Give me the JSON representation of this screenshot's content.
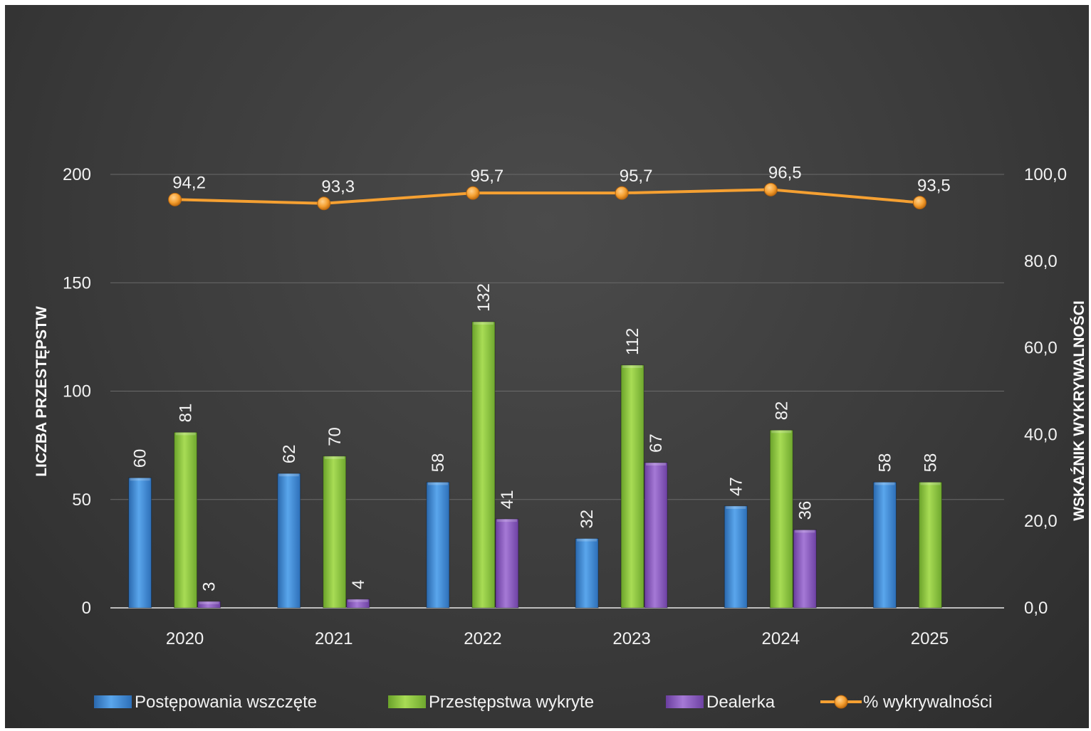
{
  "chart_data": {
    "type": "bar",
    "title": "",
    "categories": [
      "2020",
      "2021",
      "2022",
      "2023",
      "2024",
      "2025"
    ],
    "series": [
      {
        "name": "Postępowania wszczęte",
        "kind": "bar",
        "axis": "left",
        "color": "#3f8fd8",
        "values": [
          60,
          62,
          58,
          32,
          47,
          58
        ]
      },
      {
        "name": "Przestępstwa wykryte",
        "kind": "bar",
        "axis": "left",
        "color": "#8cc63f",
        "values": [
          81,
          70,
          132,
          112,
          82,
          58
        ]
      },
      {
        "name": "Dealerka",
        "kind": "bar",
        "axis": "left",
        "color": "#8a5bc0",
        "values": [
          3,
          4,
          41,
          67,
          36,
          null
        ]
      },
      {
        "name": "% wykrywalności",
        "kind": "line",
        "axis": "right",
        "color": "#f5a032",
        "values": [
          94.2,
          93.3,
          95.7,
          95.7,
          96.5,
          93.5
        ]
      }
    ],
    "data_labels": {
      "bars": [
        [
          "60",
          "81",
          "3"
        ],
        [
          "62",
          "70",
          "4"
        ],
        [
          "58",
          "132",
          "41"
        ],
        [
          "32",
          "112",
          "67"
        ],
        [
          "47",
          "82",
          "36"
        ],
        [
          "58",
          "58",
          ""
        ]
      ],
      "line": [
        "94,2",
        "93,3",
        "95,7",
        "95,7",
        "96,5",
        "93,5"
      ]
    },
    "ylabel": "LICZBA PRZESTĘPSTW",
    "ylabel_right": "WSKAŹNIK WYKRYWALNOŚCI",
    "ylim": [
      0,
      200
    ],
    "ylim_right": [
      0,
      100
    ],
    "yticks": [
      "0",
      "50",
      "100",
      "150",
      "200"
    ],
    "yticks_values": [
      0,
      50,
      100,
      150,
      200
    ],
    "yticks_right": [
      "0,0",
      "20,0",
      "40,0",
      "60,0",
      "80,0",
      "100,0"
    ],
    "yticks_right_values": [
      0,
      20,
      40,
      60,
      80,
      100
    ],
    "grid": true,
    "legend_position": "bottom",
    "background": "#3d3d3d"
  }
}
